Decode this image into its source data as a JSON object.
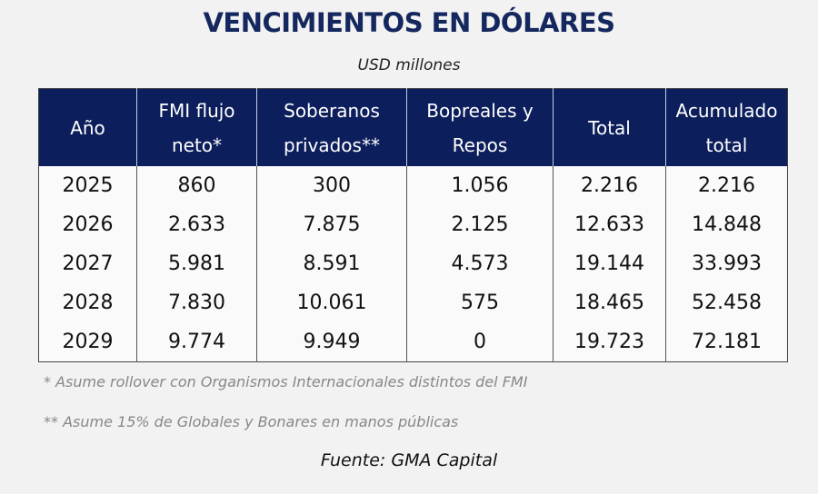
{
  "title": "VENCIMIENTOS EN DÓLARES",
  "subtitle": "USD millones",
  "colors": {
    "header_bg": "#0c1e5b",
    "title": "#14275e"
  },
  "table": {
    "headers": [
      "Año",
      "FMI flujo neto*",
      "Soberanos privados**",
      "Bopreales y Repos",
      "Total",
      "Acumulado total"
    ],
    "rows": [
      [
        "2025",
        "860",
        "300",
        "1.056",
        "2.216",
        "2.216"
      ],
      [
        "2026",
        "2.633",
        "7.875",
        "2.125",
        "12.633",
        "14.848"
      ],
      [
        "2027",
        "5.981",
        "8.591",
        "4.573",
        "19.144",
        "33.993"
      ],
      [
        "2028",
        "7.830",
        "10.061",
        "575",
        "18.465",
        "52.458"
      ],
      [
        "2029",
        "9.774",
        "9.949",
        "0",
        "19.723",
        "72.181"
      ]
    ]
  },
  "notes": [
    "* Asume rollover con Organismos Internacionales distintos del FMI",
    "** Asume 15% de Globales y Bonares en manos públicas"
  ],
  "source": "Fuente: GMA Capital"
}
